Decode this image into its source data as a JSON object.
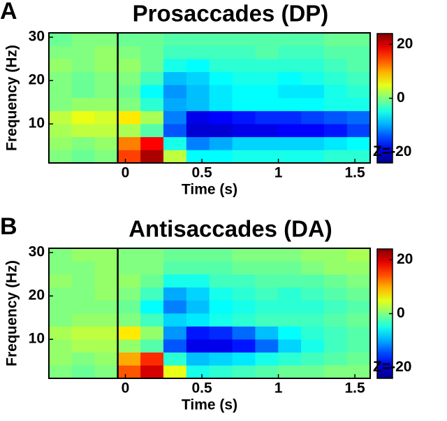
{
  "chart_data": [
    {
      "type": "heatmap",
      "panel_label": "A",
      "title": "Prosaccades (DP)",
      "xlabel": "Time (s)",
      "ylabel": "Frequency (Hz)",
      "xlim": [
        -0.5,
        1.6
      ],
      "ylim": [
        1,
        31
      ],
      "xticks": [
        0,
        0.5,
        1,
        1.5
      ],
      "yticks": [
        10,
        20,
        30
      ],
      "clim": [
        -24,
        24
      ],
      "cticks": [
        20,
        0,
        {
          "value": -20,
          "label": "Z=-20"
        }
      ],
      "colormap": "jet",
      "vline": -0.05,
      "x": [
        -0.425,
        -0.275,
        -0.125,
        0.025,
        0.175,
        0.325,
        0.475,
        0.625,
        0.775,
        0.925,
        1.075,
        1.225,
        1.375,
        1.525
      ],
      "y": [
        2.5,
        5.5,
        8.5,
        11.5,
        14.5,
        17.5,
        20.5,
        23.5,
        26.5,
        29.5
      ],
      "z": [
        [
          0,
          -1,
          0,
          15,
          22,
          3,
          -6,
          -6,
          -5,
          -5,
          -5,
          -5,
          -4,
          -4
        ],
        [
          1,
          0,
          1,
          12,
          18,
          -5,
          -12,
          -10,
          -8,
          -8,
          -8,
          -8,
          -7,
          -6
        ],
        [
          2,
          3,
          3,
          2,
          -2,
          -14,
          -20,
          -20,
          -19,
          -19,
          -18,
          -18,
          -17,
          -15
        ],
        [
          3,
          5,
          4,
          7,
          2,
          -12,
          -19,
          -18,
          -17,
          -16,
          -16,
          -15,
          -14,
          -13
        ],
        [
          0,
          1,
          1,
          0,
          -4,
          -10,
          -9,
          -7,
          -6,
          -6,
          -6,
          -6,
          -5,
          -5
        ],
        [
          0,
          -1,
          0,
          -1,
          -6,
          -11,
          -9,
          -7,
          -6,
          -6,
          -7,
          -7,
          -5,
          -4
        ],
        [
          0,
          -1,
          0,
          0,
          -3,
          -9,
          -8,
          -6,
          -5,
          -5,
          -6,
          -5,
          -4,
          -3
        ],
        [
          1,
          0,
          1,
          1,
          -1,
          -5,
          -6,
          -4,
          -4,
          -4,
          -4,
          -4,
          -3,
          -2
        ],
        [
          0,
          0,
          1,
          0,
          -1,
          -3,
          -3,
          -3,
          -3,
          -2,
          -3,
          -3,
          -2,
          -2
        ],
        [
          -1,
          0,
          0,
          -1,
          -1,
          -2,
          -2,
          -2,
          -2,
          -2,
          -2,
          -2,
          -1,
          -1
        ]
      ]
    },
    {
      "type": "heatmap",
      "panel_label": "B",
      "title": "Antisaccades (DA)",
      "xlabel": "Time (s)",
      "ylabel": "Frequency (Hz)",
      "xlim": [
        -0.5,
        1.6
      ],
      "ylim": [
        1,
        31
      ],
      "xticks": [
        0,
        0.5,
        1,
        1.5
      ],
      "yticks": [
        10,
        20,
        30
      ],
      "clim": [
        -24,
        24
      ],
      "cticks": [
        20,
        0,
        {
          "value": -20,
          "label": "Z=-20"
        }
      ],
      "colormap": "jet",
      "vline": -0.05,
      "x": [
        -0.425,
        -0.275,
        -0.125,
        0.025,
        0.175,
        0.325,
        0.475,
        0.625,
        0.775,
        0.925,
        1.075,
        1.225,
        1.375,
        1.525
      ],
      "y": [
        2.5,
        5.5,
        8.5,
        11.5,
        14.5,
        17.5,
        20.5,
        23.5,
        26.5,
        29.5
      ],
      "z": [
        [
          0,
          -1,
          0,
          14,
          20,
          5,
          -5,
          -4,
          -3,
          -2,
          -1,
          -1,
          0,
          0
        ],
        [
          1,
          0,
          1,
          10,
          16,
          -4,
          -9,
          -8,
          -7,
          -5,
          -4,
          -3,
          -2,
          -1
        ],
        [
          1,
          2,
          2,
          1,
          -2,
          -14,
          -19,
          -19,
          -17,
          -13,
          -8,
          -5,
          -3,
          -2
        ],
        [
          2,
          3,
          3,
          7,
          1,
          -11,
          -17,
          -16,
          -13,
          -9,
          -6,
          -4,
          -3,
          -2
        ],
        [
          0,
          1,
          1,
          0,
          -3,
          -8,
          -7,
          -5,
          -4,
          -3,
          -3,
          -3,
          -2,
          -1
        ],
        [
          0,
          0,
          0,
          -1,
          -6,
          -12,
          -9,
          -6,
          -5,
          -4,
          -4,
          -4,
          -3,
          -2
        ],
        [
          0,
          0,
          1,
          0,
          -3,
          -10,
          -8,
          -5,
          -4,
          -3,
          -4,
          -3,
          -2,
          -1
        ],
        [
          1,
          0,
          1,
          1,
          -1,
          -5,
          -5,
          -3,
          -3,
          -2,
          -2,
          -2,
          -1,
          0
        ],
        [
          0,
          0,
          1,
          0,
          0,
          -2,
          -2,
          -2,
          -1,
          -1,
          -1,
          0,
          1,
          1
        ],
        [
          0,
          1,
          1,
          0,
          0,
          -1,
          -1,
          -1,
          0,
          0,
          0,
          1,
          1,
          2
        ]
      ]
    }
  ]
}
